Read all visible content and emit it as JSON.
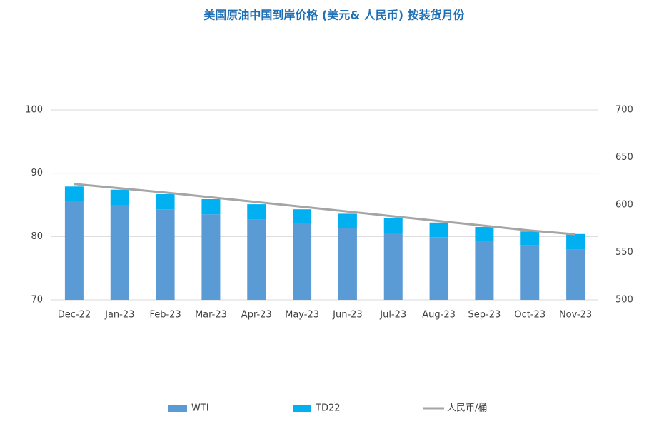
{
  "chart_data": {
    "type": "bar",
    "title": "美国原油中国到岸价格 (美元& 人民币) 按装货月份",
    "categories": [
      "Dec-22",
      "Jan-23",
      "Feb-23",
      "Mar-23",
      "Apr-23",
      "May-23",
      "Jun-23",
      "Jul-23",
      "Aug-23",
      "Sep-23",
      "Oct-23",
      "Nov-23"
    ],
    "stacked": true,
    "series": [
      {
        "name": "WTI",
        "color": "#5b9bd5",
        "values": [
          85.6,
          85.0,
          84.3,
          83.5,
          82.7,
          82.1,
          81.3,
          80.6,
          79.9,
          79.2,
          78.6,
          78.0
        ]
      },
      {
        "name": "TD22",
        "color": "#00b0f0",
        "values": [
          2.3,
          2.4,
          2.4,
          2.4,
          2.4,
          2.2,
          2.3,
          2.3,
          2.3,
          2.3,
          2.2,
          2.4
        ]
      },
      {
        "name": "人民币/桶",
        "type": "line",
        "axis": "y2",
        "color": "#a5a5a5",
        "values": [
          622,
          617.5,
          613,
          608,
          603,
          598,
          593,
          588,
          583,
          578,
          573,
          569
        ]
      }
    ],
    "ylim": [
      70,
      100
    ],
    "yticks": [
      70,
      80,
      90,
      100
    ],
    "y2lim": [
      500,
      700
    ],
    "y2ticks": [
      500,
      550,
      600,
      650,
      700
    ],
    "grid": true,
    "legend": "bottom"
  }
}
